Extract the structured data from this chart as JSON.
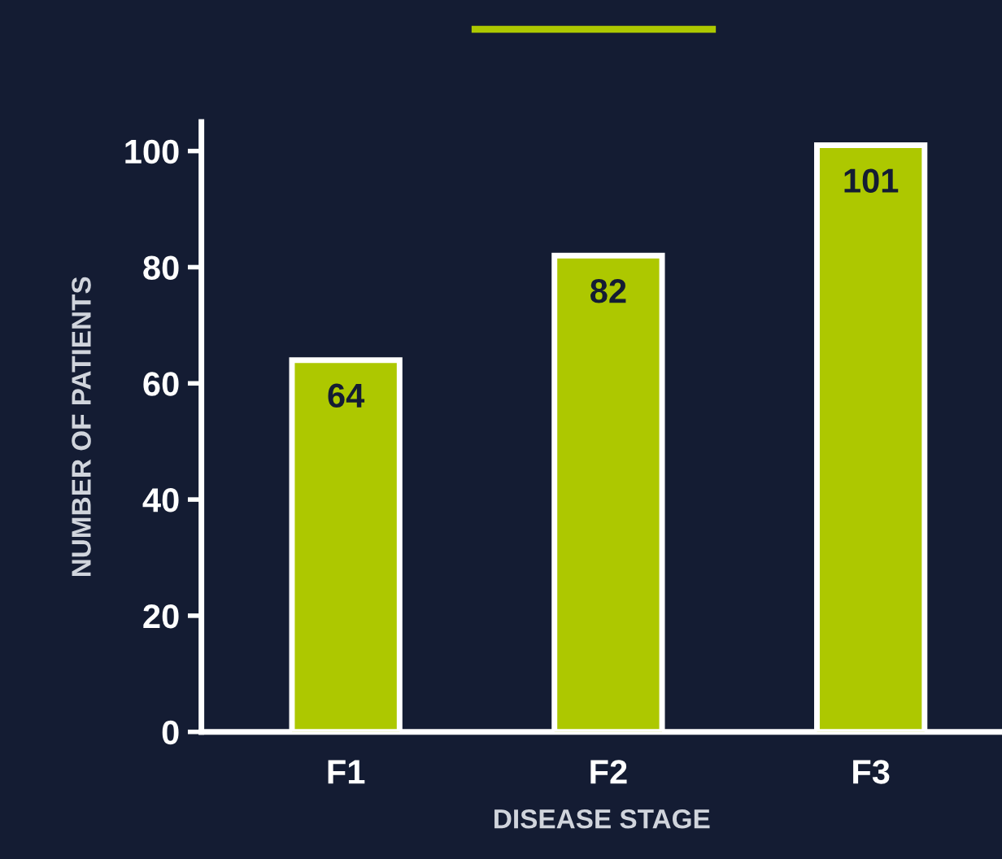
{
  "chart_data": {
    "type": "bar",
    "xlabel": "DISEASE STAGE",
    "ylabel": "NUMBER OF PATIENTS",
    "categories": [
      "F1",
      "F2",
      "F3"
    ],
    "values": [
      64,
      82,
      101
    ],
    "color": "#adc800",
    "ylim": [
      0,
      105
    ],
    "yticks": [
      0,
      20,
      40,
      60,
      80,
      100
    ],
    "grid": false,
    "legend": false,
    "data_labels": true
  }
}
